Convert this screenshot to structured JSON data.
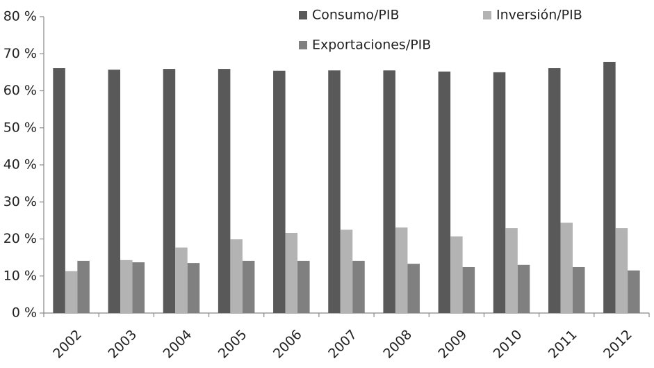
{
  "chart_data": {
    "type": "bar",
    "categories": [
      "2002",
      "2003",
      "2004",
      "2005",
      "2006",
      "2007",
      "2008",
      "2009",
      "2010",
      "2011",
      "2012"
    ],
    "series": [
      {
        "name": "Consumo/PIB",
        "color": "#595959",
        "values": [
          66.1,
          65.7,
          65.9,
          65.9,
          65.4,
          65.5,
          65.5,
          65.2,
          65.0,
          66.1,
          67.8
        ]
      },
      {
        "name": "Inversión/PIB",
        "color": "#b3b3b3",
        "values": [
          11.3,
          14.3,
          17.7,
          19.9,
          21.6,
          22.5,
          23.1,
          20.7,
          22.9,
          24.4,
          22.9
        ]
      },
      {
        "name": "Exportaciones/PIB",
        "color": "#808080",
        "values": [
          14.1,
          13.7,
          13.5,
          14.1,
          14.1,
          14.1,
          13.3,
          12.4,
          13.0,
          12.4,
          11.5
        ]
      }
    ],
    "ylim": [
      0,
      80
    ],
    "yticks": [
      {
        "value": 0,
        "label": "0 %"
      },
      {
        "value": 10,
        "label": "10 %"
      },
      {
        "value": 20,
        "label": "20 %"
      },
      {
        "value": 30,
        "label": "30 %"
      },
      {
        "value": 40,
        "label": "40 %"
      },
      {
        "value": 50,
        "label": "50 %"
      },
      {
        "value": 60,
        "label": "60 %"
      },
      {
        "value": 70,
        "label": "70 %"
      },
      {
        "value": 80,
        "label": "80 %"
      }
    ],
    "grid": false
  }
}
